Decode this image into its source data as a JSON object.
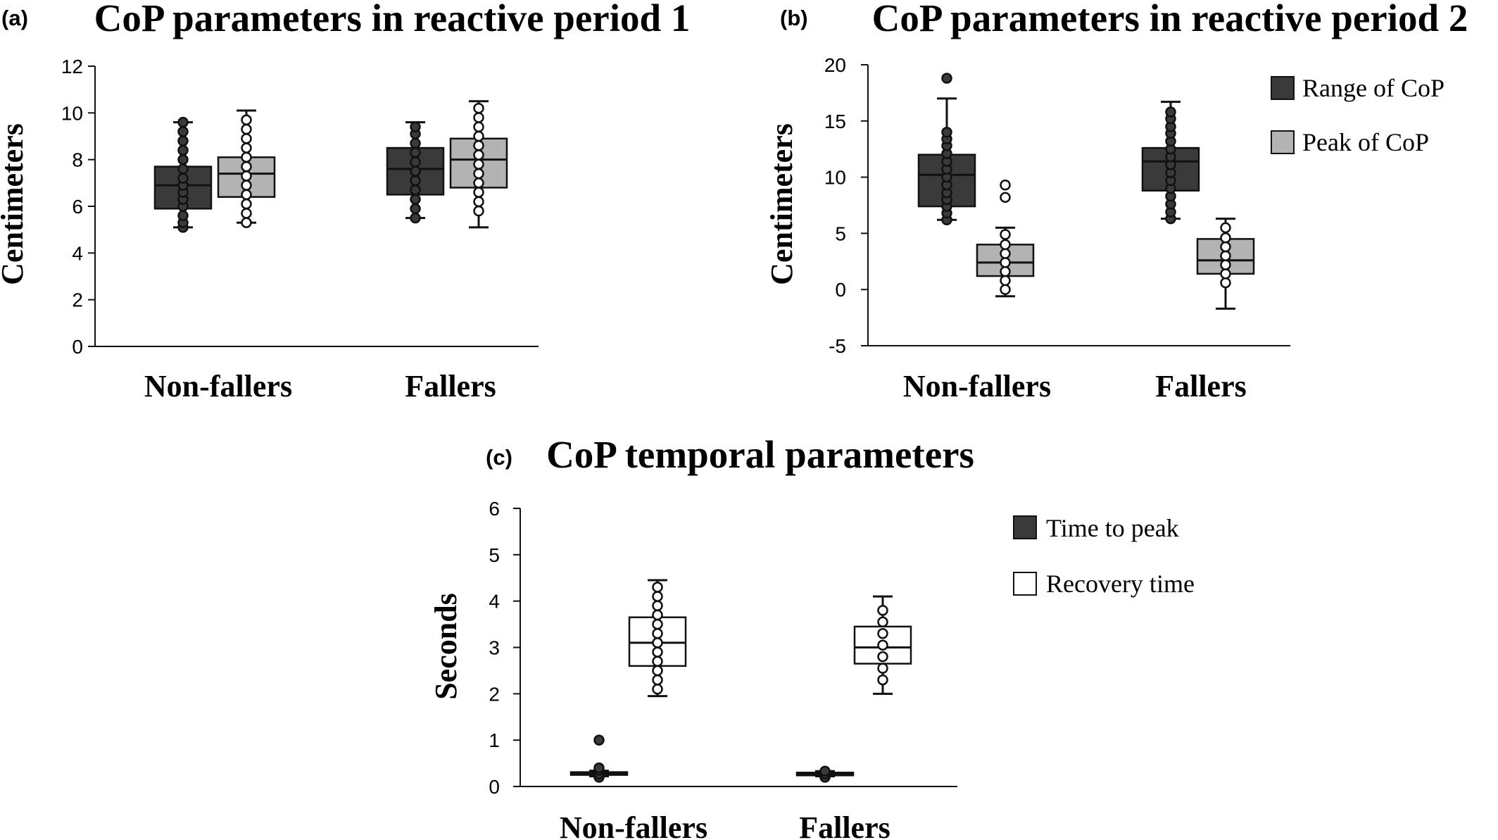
{
  "colors": {
    "dark": "#3a3a3a",
    "light": "#b3b3b3",
    "white": "#ffffff",
    "axis": "#111111"
  },
  "chart_data": [
    {
      "panel": "(a)",
      "type": "box",
      "title": "CoP parameters in reactive period 1",
      "ylabel": "Centimeters",
      "ylim": [
        0,
        12
      ],
      "yticks": [
        0,
        2,
        4,
        6,
        8,
        10,
        12
      ],
      "categories": [
        "Non-fallers",
        "Fallers"
      ],
      "legend": [],
      "series": [
        {
          "color_key": "dark",
          "groups": [
            {
              "min": 5.1,
              "q1": 5.9,
              "median": 6.9,
              "q3": 7.7,
              "max": 9.6,
              "points": [
                5.1,
                5.3,
                5.6,
                6.0,
                6.3,
                6.6,
                6.9,
                7.2,
                7.6,
                8.0,
                8.4,
                8.8,
                9.2,
                9.6
              ]
            },
            {
              "min": 5.5,
              "q1": 6.5,
              "median": 7.6,
              "q3": 8.5,
              "max": 9.6,
              "points": [
                5.5,
                5.9,
                6.3,
                6.7,
                7.1,
                7.5,
                7.9,
                8.3,
                8.7,
                9.1,
                9.4
              ]
            }
          ]
        },
        {
          "color_key": "light",
          "groups": [
            {
              "min": 5.3,
              "q1": 6.4,
              "median": 7.4,
              "q3": 8.1,
              "max": 10.1,
              "points": [
                5.3,
                5.7,
                6.1,
                6.5,
                6.9,
                7.3,
                7.7,
                8.1,
                8.5,
                8.9,
                9.3,
                9.7
              ]
            },
            {
              "min": 5.1,
              "q1": 6.8,
              "median": 8.0,
              "q3": 8.9,
              "max": 10.5,
              "points": [
                5.8,
                6.2,
                6.6,
                7.0,
                7.4,
                7.8,
                8.2,
                8.6,
                9.0,
                9.4,
                9.8,
                10.2
              ]
            }
          ]
        }
      ]
    },
    {
      "panel": "(b)",
      "type": "box",
      "title": "CoP parameters in reactive period 2",
      "ylabel": "Centimeters",
      "ylim": [
        -5,
        20
      ],
      "yticks": [
        -5,
        0,
        5,
        10,
        15,
        20
      ],
      "categories": [
        "Non-fallers",
        "Fallers"
      ],
      "legend": [
        "Range of CoP",
        "Peak of CoP"
      ],
      "series": [
        {
          "color_key": "dark",
          "groups": [
            {
              "min": 6.2,
              "q1": 7.4,
              "median": 10.2,
              "q3": 12.0,
              "max": 17.0,
              "points": [
                6.2,
                6.8,
                7.4,
                8.0,
                8.6,
                9.3,
                10.0,
                10.7,
                11.4,
                12.1,
                12.8,
                13.4,
                14.0,
                18.8
              ]
            },
            {
              "min": 6.3,
              "q1": 8.8,
              "median": 11.4,
              "q3": 12.6,
              "max": 16.7,
              "points": [
                6.3,
                6.9,
                7.6,
                8.3,
                9.0,
                9.7,
                10.4,
                11.1,
                11.8,
                12.5,
                13.2,
                13.9,
                14.5,
                15.2,
                15.8
              ]
            }
          ]
        },
        {
          "color_key": "light",
          "groups": [
            {
              "min": -0.6,
              "q1": 1.2,
              "median": 2.4,
              "q3": 4.0,
              "max": 5.5,
              "points": [
                0.0,
                0.8,
                1.6,
                2.4,
                3.2,
                4.0,
                4.9,
                8.2,
                9.3
              ]
            },
            {
              "min": -1.7,
              "q1": 1.4,
              "median": 2.6,
              "q3": 4.5,
              "max": 6.3,
              "points": [
                0.6,
                1.4,
                2.2,
                3.0,
                3.8,
                4.6,
                5.5
              ]
            }
          ]
        }
      ]
    },
    {
      "panel": "(c)",
      "type": "box",
      "title": "CoP temporal parameters",
      "ylabel": "Seconds",
      "ylim": [
        0,
        6
      ],
      "yticks": [
        0,
        1,
        2,
        3,
        4,
        5,
        6
      ],
      "categories": [
        "Non-fallers",
        "Fallers"
      ],
      "legend": [
        "Time to peak",
        "Recovery time"
      ],
      "series": [
        {
          "color_key": "dark",
          "groups": [
            {
              "min": 0.22,
              "q1": 0.25,
              "median": 0.28,
              "q3": 0.31,
              "max": 0.34,
              "points": [
                0.2,
                0.27,
                0.35,
                0.4,
                1.0
              ]
            },
            {
              "min": 0.22,
              "q1": 0.24,
              "median": 0.27,
              "q3": 0.3,
              "max": 0.33,
              "points": [
                0.2,
                0.27,
                0.33
              ]
            }
          ]
        },
        {
          "color_key": "white",
          "groups": [
            {
              "min": 1.95,
              "q1": 2.6,
              "median": 3.1,
              "q3": 3.65,
              "max": 4.45,
              "points": [
                2.1,
                2.3,
                2.5,
                2.7,
                2.9,
                3.1,
                3.3,
                3.5,
                3.7,
                3.9,
                4.1,
                4.3
              ]
            },
            {
              "min": 2.0,
              "q1": 2.65,
              "median": 3.0,
              "q3": 3.45,
              "max": 4.1,
              "points": [
                2.3,
                2.55,
                2.8,
                3.05,
                3.3,
                3.55,
                3.8
              ]
            }
          ]
        }
      ]
    }
  ]
}
